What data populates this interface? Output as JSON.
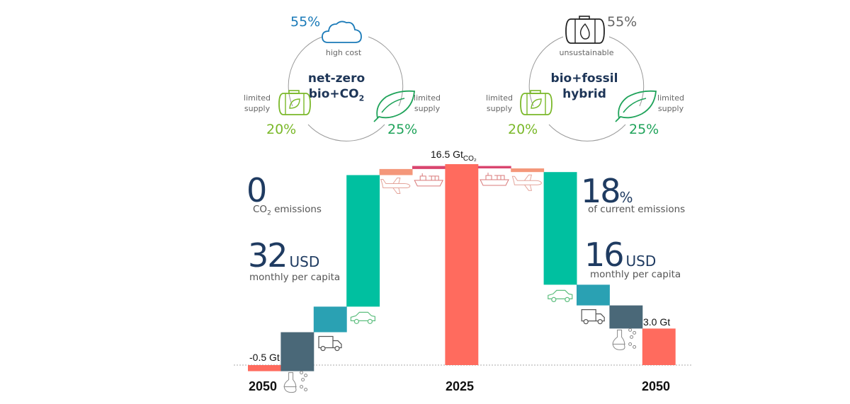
{
  "scenarios": {
    "left": {
      "title_line1": "net-zero",
      "title_line2": "bio+CO",
      "title_sub": "2",
      "top": {
        "pct": "55%",
        "label": "high cost",
        "icon": "cloud-icon",
        "color": "#1a7ab8"
      },
      "left": {
        "pct": "20%",
        "label_line1": "limited",
        "label_line2": "supply",
        "icon": "bio-tank-icon",
        "color": "#7ab829"
      },
      "right": {
        "pct": "25%",
        "label_line1": "limited",
        "label_line2": "supply",
        "icon": "leaf-icon",
        "color": "#1fa35a"
      }
    },
    "right": {
      "title_line1": "bio+fossil",
      "title_line2": "hybrid",
      "top": {
        "pct": "55%",
        "label": "unsustainable",
        "icon": "fossil-tank-icon",
        "color": "#666666"
      },
      "left": {
        "pct": "20%",
        "label_line1": "limited",
        "label_line2": "supply",
        "icon": "bio-tank-icon",
        "color": "#7ab829"
      },
      "right": {
        "pct": "25%",
        "label_line1": "limited",
        "label_line2": "supply",
        "icon": "leaf-icon",
        "color": "#1fa35a"
      }
    }
  },
  "stats": {
    "left": {
      "emissions_value": "0",
      "emissions_label_pre": "CO",
      "emissions_label_sub": "2",
      "emissions_label_post": " emissions",
      "cost_value": "32",
      "cost_unit": "USD",
      "cost_label": "monthly per capita"
    },
    "right": {
      "emissions_value": "18",
      "emissions_unit": "%",
      "emissions_label": "of current emissions",
      "cost_value": "16",
      "cost_unit": "USD",
      "cost_label": "monthly per capita"
    }
  },
  "chart_data": {
    "type": "bar",
    "subtype": "waterfall",
    "title": "",
    "unit": "Gt CO2",
    "ylim": [
      -0.5,
      16.5
    ],
    "baseline_style": "dotted",
    "center_label": {
      "text": "16.5 Gt",
      "sub": "CO₂"
    },
    "year_labels": [
      "2050",
      "2025",
      "2050"
    ],
    "end_labels": {
      "left": "-0.5 Gt",
      "right": "3.0 Gt"
    },
    "colors": {
      "total": "#ff6b5e",
      "aviation": "#f4977a",
      "shipping": "#d9456e",
      "cars": "#00c0a0",
      "trucks": "#2aa1b3",
      "industry": "#4a6878"
    },
    "bars": [
      {
        "name": "total-2050-netzero",
        "category": "total",
        "start": 0,
        "end": -0.5,
        "icon": ""
      },
      {
        "name": "industry-left",
        "category": "industry",
        "start": -0.5,
        "end": 2.7,
        "icon": "chemistry-flask-icon"
      },
      {
        "name": "trucks-left",
        "category": "trucks",
        "start": 2.7,
        "end": 4.8,
        "icon": "truck-icon"
      },
      {
        "name": "cars-left",
        "category": "cars",
        "start": 4.8,
        "end": 15.6,
        "icon": "car-icon"
      },
      {
        "name": "aviation-left",
        "category": "aviation",
        "start": 15.6,
        "end": 16.1,
        "icon": "airplane-icon"
      },
      {
        "name": "shipping-left",
        "category": "shipping",
        "start": 16.1,
        "end": 16.35,
        "icon": "ship-icon"
      },
      {
        "name": "total-2025",
        "category": "total",
        "start": 0,
        "end": 16.5,
        "icon": ""
      },
      {
        "name": "shipping-right",
        "category": "shipping",
        "start": 16.35,
        "end": 16.15,
        "icon": "ship-icon"
      },
      {
        "name": "aviation-right",
        "category": "aviation",
        "start": 16.15,
        "end": 15.85,
        "icon": "airplane-icon"
      },
      {
        "name": "cars-right",
        "category": "cars",
        "start": 15.85,
        "end": 6.6,
        "icon": "car-icon"
      },
      {
        "name": "trucks-right",
        "category": "trucks",
        "start": 6.6,
        "end": 4.9,
        "icon": "truck-icon"
      },
      {
        "name": "industry-right",
        "category": "industry",
        "start": 4.9,
        "end": 3.0,
        "icon": "chemistry-flask-icon"
      },
      {
        "name": "total-2050-hybrid",
        "category": "total",
        "start": 0,
        "end": 3.0,
        "icon": ""
      }
    ]
  }
}
